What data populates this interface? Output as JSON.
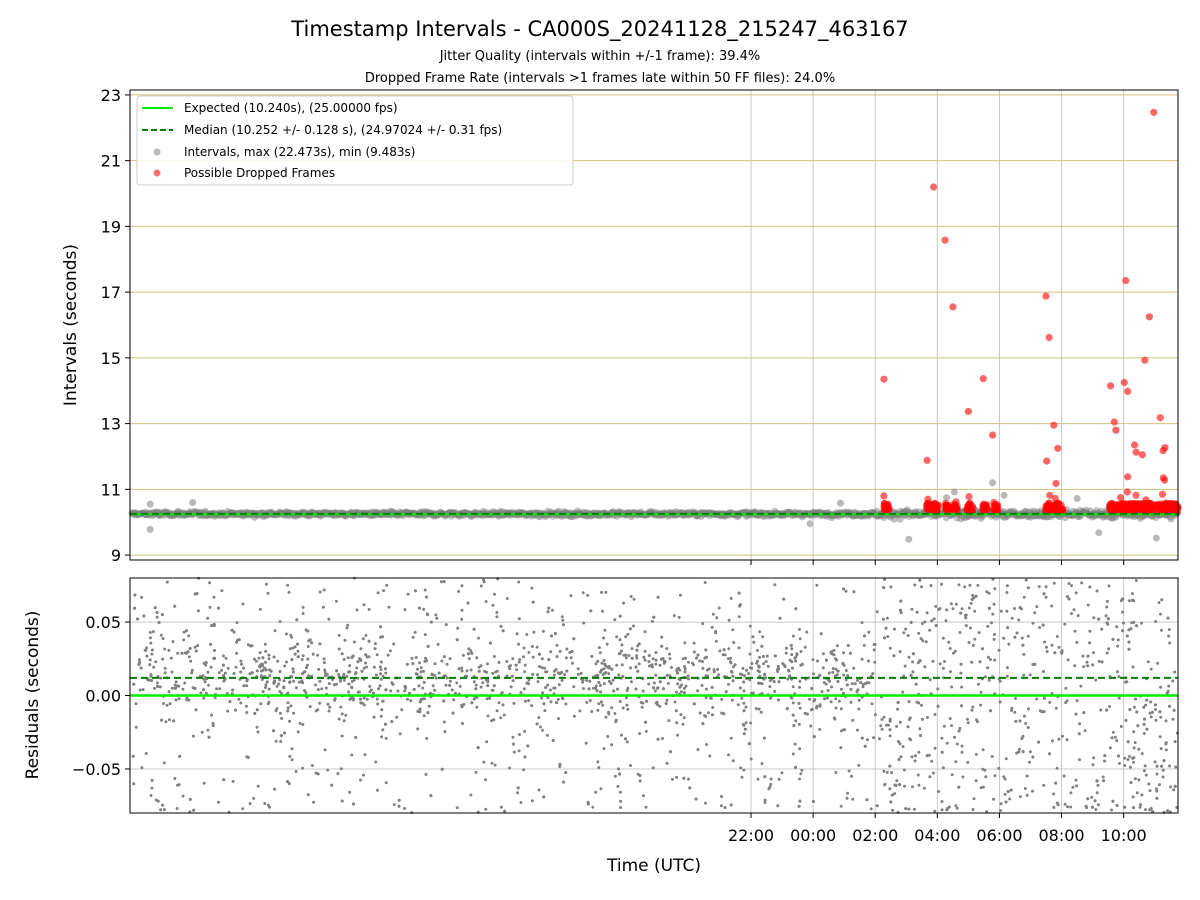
{
  "figure": {
    "title": "Timestamp Intervals - CA000S_20241128_215247_463167",
    "subtitle1": "Jitter Quality (intervals within +/-1 frame): 39.4%",
    "subtitle2": "Dropped Frame Rate (intervals >1 frames late within 50 FF files): 24.0%"
  },
  "colors": {
    "expected": "#00ee00",
    "median": "#008000",
    "intervals": "#808080",
    "dropped": "#ff0000",
    "hgrid_top": "#d4c07a",
    "grid": "#c8c8c8"
  },
  "chart_data": [
    {
      "type": "scatter",
      "panel": "intervals",
      "xlabel": "",
      "ylabel": "Intervals (seconds)",
      "x_unit": "hours since 00:00 UTC (negative = previous day)",
      "xlim": [
        -22.0,
        11.75
      ],
      "ylim": [
        8.85,
        23.15
      ],
      "yticks": [
        9,
        11,
        13,
        15,
        17,
        19,
        21,
        23
      ],
      "xtick_labels": [
        "22:00",
        "00:00",
        "02:00",
        "04:00",
        "06:00",
        "08:00",
        "10:00"
      ],
      "grid": true,
      "legend_position": "top-left",
      "legend": [
        {
          "key": "expected",
          "label": "Expected (10.240s), (25.00000 fps)",
          "style": "solid-line"
        },
        {
          "key": "median",
          "label": "Median (10.252 +/- 0.128 s), (24.97024 +/- 0.31 fps)",
          "style": "dashed-line"
        },
        {
          "key": "intervals",
          "label": "Intervals, max (22.473s), min (9.483s)",
          "style": "marker"
        },
        {
          "key": "dropped",
          "label": "Possible Dropped Frames",
          "style": "marker"
        }
      ],
      "expected_y": 10.24,
      "median_y": 10.252,
      "series": [
        {
          "name": "Possible Dropped Frames",
          "points": [
            [
              2.28,
              14.35
            ],
            [
              3.67,
              11.88
            ],
            [
              3.88,
              20.2
            ],
            [
              4.25,
              18.58
            ],
            [
              4.5,
              16.55
            ],
            [
              5.0,
              13.37
            ],
            [
              5.48,
              14.37
            ],
            [
              5.78,
              12.65
            ],
            [
              7.5,
              16.88
            ],
            [
              7.6,
              15.62
            ],
            [
              7.52,
              11.86
            ],
            [
              7.75,
              12.95
            ],
            [
              7.88,
              12.25
            ],
            [
              7.82,
              11.18
            ],
            [
              9.58,
              14.15
            ],
            [
              9.7,
              13.05
            ],
            [
              9.75,
              12.8
            ],
            [
              10.02,
              14.25
            ],
            [
              10.07,
              17.35
            ],
            [
              10.13,
              13.98
            ],
            [
              10.13,
              11.38
            ],
            [
              10.35,
              12.35
            ],
            [
              10.4,
              12.13
            ],
            [
              10.6,
              12.05
            ],
            [
              10.68,
              14.93
            ],
            [
              10.83,
              16.25
            ],
            [
              10.97,
              22.47
            ],
            [
              11.18,
              13.18
            ],
            [
              11.27,
              12.18
            ],
            [
              11.33,
              12.27
            ],
            [
              11.28,
              11.35
            ],
            [
              11.32,
              11.28
            ],
            [
              3.7,
              10.7
            ],
            [
              3.85,
              10.5
            ],
            [
              4.6,
              10.62
            ],
            [
              5.02,
              10.78
            ],
            [
              5.82,
              10.6
            ],
            [
              7.62,
              10.82
            ],
            [
              7.8,
              10.72
            ],
            [
              9.9,
              10.75
            ],
            [
              10.12,
              10.92
            ],
            [
              10.4,
              10.82
            ],
            [
              10.72,
              10.68
            ],
            [
              11.25,
              10.85
            ],
            [
              2.28,
              10.8
            ]
          ]
        },
        {
          "name": "Intervals, max (22.473s), min (9.483s)",
          "points": [
            [
              4.55,
              10.92
            ],
            [
              5.78,
              11.2
            ],
            [
              6.15,
              10.82
            ],
            [
              3.08,
              9.48
            ],
            [
              11.05,
              9.52
            ],
            [
              -21.35,
              9.78
            ],
            [
              -21.35,
              10.55
            ],
            [
              -19.98,
              10.6
            ],
            [
              -0.1,
              9.95
            ],
            [
              4.3,
              10.75
            ],
            [
              0.88,
              10.58
            ],
            [
              8.5,
              10.72
            ],
            [
              9.2,
              9.68
            ]
          ]
        }
      ],
      "dropped_clusters_x_hours": [
        [
          2.25,
          2.45
        ],
        [
          3.65,
          3.85
        ],
        [
          3.9,
          4.05
        ],
        [
          4.25,
          4.45
        ],
        [
          4.5,
          4.65
        ],
        [
          4.95,
          5.15
        ],
        [
          5.45,
          5.65
        ],
        [
          5.8,
          5.95
        ],
        [
          7.45,
          8.05
        ],
        [
          9.55,
          11.75
        ]
      ]
    },
    {
      "type": "scatter",
      "panel": "residuals",
      "xlabel": "Time (UTC)",
      "ylabel": "Residuals (seconds)",
      "x_unit": "hours since 00:00 UTC (negative = previous day)",
      "xlim": [
        -22.0,
        11.75
      ],
      "ylim": [
        -0.08,
        0.08
      ],
      "yticks": [
        -0.05,
        0.0,
        0.05
      ],
      "ytick_labels": [
        "−0.05",
        "0.00",
        "0.05"
      ],
      "xtick_labels": [
        "22:00",
        "00:00",
        "02:00",
        "04:00",
        "06:00",
        "08:00",
        "10:00"
      ],
      "grid": true,
      "zero_line_y": 0.0,
      "median_residual_y": 0.012,
      "series": [
        {
          "name": "Residuals",
          "x_range": [
            -21.9,
            11.75
          ],
          "y_range": [
            -0.08,
            0.08
          ],
          "dense_band_before_h": 2.0
        }
      ]
    }
  ]
}
